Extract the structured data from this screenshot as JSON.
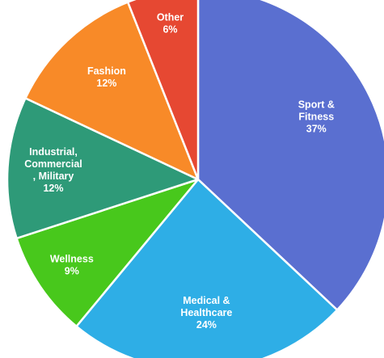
{
  "chart_data": {
    "type": "pie",
    "title": "",
    "start_angle_deg": 0,
    "direction": "clockwise",
    "slices": [
      {
        "label": [
          "Sport &",
          "Fitness"
        ],
        "percent_label": "37%",
        "value": 37,
        "color": "#5a6fd0"
      },
      {
        "label": [
          "Medical &",
          "Healthcare"
        ],
        "percent_label": "24%",
        "value": 24,
        "color": "#2eaee6"
      },
      {
        "label": [
          "Wellness"
        ],
        "percent_label": "9%",
        "value": 9,
        "color": "#48c81c"
      },
      {
        "label": [
          "Industrial,",
          "Commercial",
          ", Military"
        ],
        "percent_label": "12%",
        "value": 12,
        "color": "#2e9a78"
      },
      {
        "label": [
          "Fashion"
        ],
        "percent_label": "12%",
        "value": 12,
        "color": "#f88a28"
      },
      {
        "label": [
          "Other"
        ],
        "percent_label": "6%",
        "value": 6,
        "color": "#e64832"
      }
    ]
  }
}
